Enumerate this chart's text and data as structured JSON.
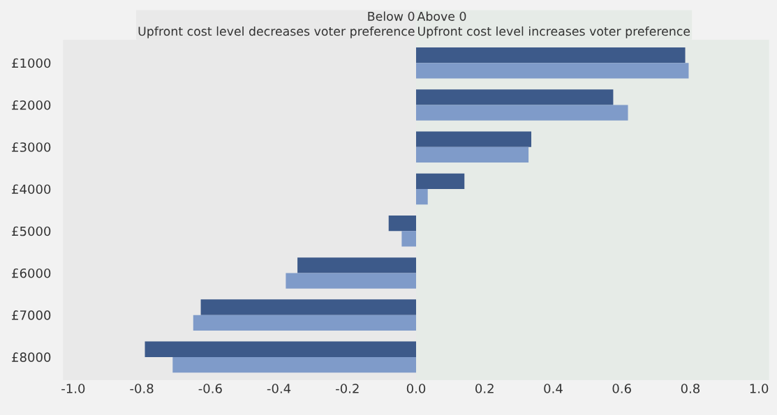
{
  "chart_data": {
    "type": "bar",
    "orientation": "horizontal",
    "categories": [
      "£1000",
      "£2000",
      "£3000",
      "£4000",
      "£5000",
      "£6000",
      "£7000",
      "£8000"
    ],
    "series": [
      {
        "color": "#3d5a8a",
        "values": [
          0.785,
          0.575,
          0.336,
          0.141,
          -0.08,
          -0.346,
          -0.628,
          -0.791
        ]
      },
      {
        "color": "#7f9bc9",
        "values": [
          0.795,
          0.618,
          0.328,
          0.034,
          -0.042,
          -0.38,
          -0.65,
          -0.71
        ]
      }
    ],
    "xlim": [
      -1.03,
      1.03
    ],
    "xticks": [
      {
        "value": -1,
        "label": "-1.0"
      },
      -0.8,
      -0.6,
      -0.4,
      -0.2,
      {
        "value": 0,
        "label": "0.0"
      },
      0.2,
      0.4,
      0.6,
      0.8,
      {
        "value": 1,
        "label": "1.0"
      }
    ],
    "bands": [
      {
        "axis": "x",
        "from": -1.03,
        "to": 0,
        "label": "Below 0\nUpfront cost level decreases voter preference",
        "color": "#e9e9e9"
      },
      {
        "axis": "x",
        "from": 0,
        "to": 1.03,
        "label": "Above 0\nUpfront cost level increases voter preference",
        "color": "#e6ebe7"
      }
    ],
    "grid": false,
    "legend": false
  }
}
